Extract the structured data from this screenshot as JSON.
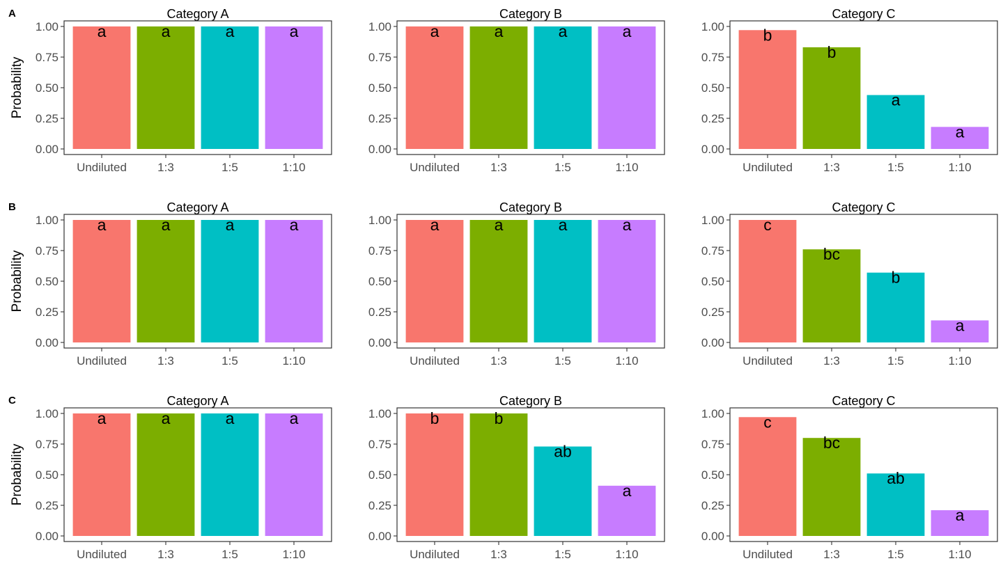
{
  "chart_data": {
    "type": "bar",
    "categories": [
      "Undiluted",
      "1:3",
      "1:5",
      "1:10"
    ],
    "colors": [
      "#F8766D",
      "#7CAE00",
      "#00BFC4",
      "#C77CFF"
    ],
    "ylabel": "Probability",
    "y_ticks": [
      "0.00",
      "0.25",
      "0.50",
      "0.75",
      "1.00"
    ],
    "ylim": [
      0,
      1
    ],
    "grid": false,
    "rows": [
      {
        "label": "A",
        "panels": [
          {
            "title": "Category A",
            "values": [
              1.0,
              1.0,
              1.0,
              1.0
            ],
            "letters": [
              "a",
              "a",
              "a",
              "a"
            ]
          },
          {
            "title": "Category B",
            "values": [
              1.0,
              1.0,
              1.0,
              1.0
            ],
            "letters": [
              "a",
              "a",
              "a",
              "a"
            ]
          },
          {
            "title": "Category C",
            "values": [
              0.97,
              0.83,
              0.44,
              0.18
            ],
            "letters": [
              "b",
              "b",
              "a",
              "a"
            ]
          }
        ]
      },
      {
        "label": "B",
        "panels": [
          {
            "title": "Category A",
            "values": [
              1.0,
              1.0,
              1.0,
              1.0
            ],
            "letters": [
              "a",
              "a",
              "a",
              "a"
            ]
          },
          {
            "title": "Category B",
            "values": [
              1.0,
              1.0,
              1.0,
              1.0
            ],
            "letters": [
              "a",
              "a",
              "a",
              "a"
            ]
          },
          {
            "title": "Category C",
            "values": [
              1.0,
              0.76,
              0.57,
              0.18
            ],
            "letters": [
              "c",
              "bc",
              "b",
              "a"
            ]
          }
        ]
      },
      {
        "label": "C",
        "panels": [
          {
            "title": "Category A",
            "values": [
              1.0,
              1.0,
              1.0,
              1.0
            ],
            "letters": [
              "a",
              "a",
              "a",
              "a"
            ]
          },
          {
            "title": "Category B",
            "values": [
              1.0,
              1.0,
              0.73,
              0.41
            ],
            "letters": [
              "b",
              "b",
              "ab",
              "a"
            ]
          },
          {
            "title": "Category C",
            "values": [
              0.97,
              0.8,
              0.51,
              0.21
            ],
            "letters": [
              "c",
              "bc",
              "ab",
              "a"
            ]
          }
        ]
      }
    ]
  }
}
